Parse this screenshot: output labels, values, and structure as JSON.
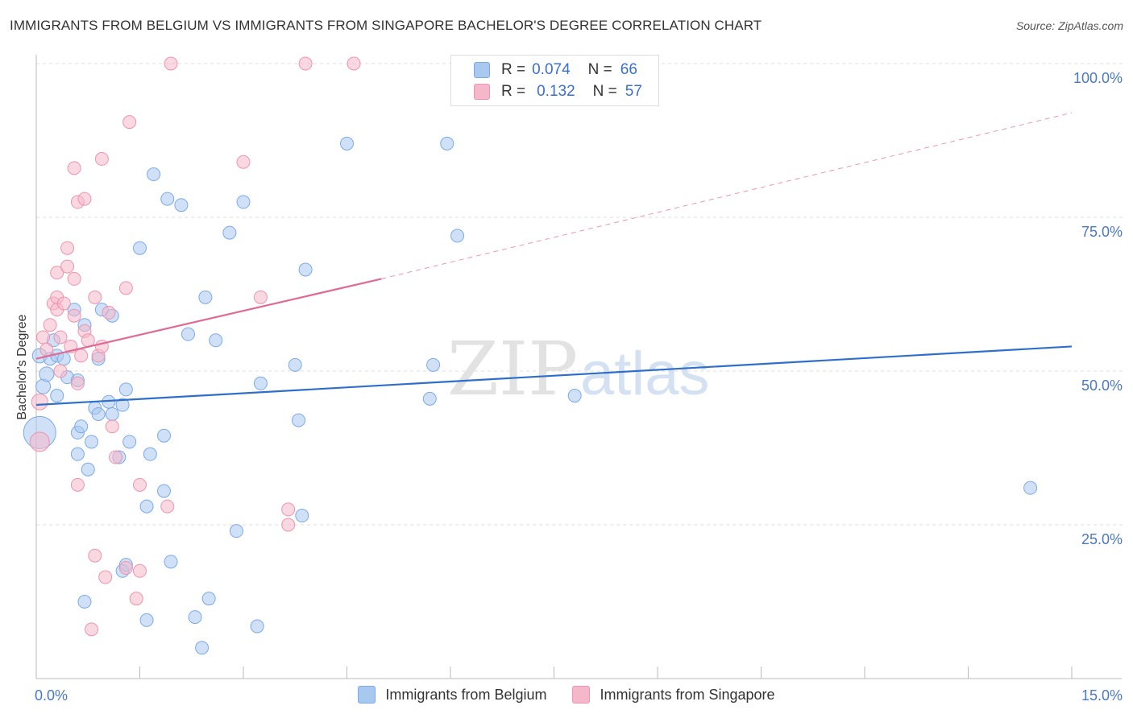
{
  "title": "IMMIGRANTS FROM BELGIUM VS IMMIGRANTS FROM SINGAPORE BACHELOR'S DEGREE CORRELATION CHART",
  "source": "Source: ZipAtlas.com",
  "watermark": {
    "zip": "ZIP",
    "atlas": "atlas"
  },
  "legend_top": {
    "rows": [
      {
        "r_label": "R = ",
        "r_value": "0.074",
        "n_label": "N = ",
        "n_value": "66",
        "color": "#a9c8f0"
      },
      {
        "r_label": "R = ",
        "r_value": "0.132",
        "n_label": "N = ",
        "n_value": "57",
        "color": "#f5b8cb"
      }
    ]
  },
  "legend_bottom": {
    "items": [
      {
        "label": "Immigrants from Belgium",
        "color": "#a9c8f0"
      },
      {
        "label": "Immigrants from Singapore",
        "color": "#f5b8cb"
      }
    ]
  },
  "chart_data": {
    "type": "scatter",
    "title": "IMMIGRANTS FROM BELGIUM VS IMMIGRANTS FROM SINGAPORE BACHELOR'S DEGREE CORRELATION CHART",
    "xlabel": "",
    "ylabel": "Bachelor's Degree",
    "xlim": [
      0,
      15
    ],
    "ylim": [
      0,
      100
    ],
    "x_tick_labels": [
      "0.0%",
      "15.0%"
    ],
    "y_ticks": [
      25,
      50,
      75,
      100
    ],
    "y_tick_labels": [
      "25.0%",
      "50.0%",
      "75.0%",
      "100.0%"
    ],
    "grid": true,
    "series": [
      {
        "name": "Immigrants from Belgium",
        "color": "#7aaae6",
        "fill": "rgba(169,200,240,0.55)",
        "trend": {
          "x": [
            0,
            15
          ],
          "y": [
            44.5,
            54
          ],
          "color": "#2f6fcc",
          "dashed_to": null
        },
        "points": [
          [
            0.05,
            40,
            20
          ],
          [
            0.05,
            52.5,
            9
          ],
          [
            0.1,
            47.5,
            9
          ],
          [
            0.15,
            49.5,
            9
          ],
          [
            0.2,
            52,
            8
          ],
          [
            0.25,
            55,
            8
          ],
          [
            0.3,
            46,
            8
          ],
          [
            0.3,
            52.5,
            8
          ],
          [
            0.4,
            52,
            8
          ],
          [
            0.45,
            49,
            8
          ],
          [
            0.55,
            60,
            8
          ],
          [
            0.6,
            40,
            8
          ],
          [
            0.6,
            36.5,
            8
          ],
          [
            0.6,
            48.5,
            8
          ],
          [
            0.65,
            41,
            8
          ],
          [
            0.7,
            57.5,
            8
          ],
          [
            0.7,
            12.5,
            8
          ],
          [
            0.75,
            34,
            8
          ],
          [
            0.8,
            38.5,
            8
          ],
          [
            0.85,
            44,
            8
          ],
          [
            0.9,
            43,
            8
          ],
          [
            0.9,
            52,
            8
          ],
          [
            0.95,
            60,
            8
          ],
          [
            1.05,
            45,
            8
          ],
          [
            1.1,
            43,
            8
          ],
          [
            1.1,
            59,
            8
          ],
          [
            1.2,
            36,
            8
          ],
          [
            1.25,
            44.5,
            8
          ],
          [
            1.25,
            17.5,
            8
          ],
          [
            1.3,
            18.5,
            8
          ],
          [
            1.3,
            47,
            8
          ],
          [
            1.35,
            38.5,
            8
          ],
          [
            1.5,
            70,
            8
          ],
          [
            1.6,
            28,
            8
          ],
          [
            1.6,
            9.5,
            8
          ],
          [
            1.65,
            36.5,
            8
          ],
          [
            1.7,
            82,
            8
          ],
          [
            1.85,
            39.5,
            8
          ],
          [
            1.85,
            30.5,
            8
          ],
          [
            1.9,
            78,
            8
          ],
          [
            1.95,
            19,
            8
          ],
          [
            2.1,
            77,
            8
          ],
          [
            2.2,
            56,
            8
          ],
          [
            2.3,
            10,
            8
          ],
          [
            2.4,
            5,
            8
          ],
          [
            2.45,
            62,
            8
          ],
          [
            2.5,
            13,
            8
          ],
          [
            2.6,
            55,
            8
          ],
          [
            2.8,
            72.5,
            8
          ],
          [
            2.9,
            24,
            8
          ],
          [
            3.0,
            77.5,
            8
          ],
          [
            3.2,
            8.5,
            8
          ],
          [
            3.25,
            48,
            8
          ],
          [
            3.75,
            51,
            8
          ],
          [
            3.8,
            42,
            8
          ],
          [
            3.85,
            26.5,
            8
          ],
          [
            3.9,
            66.5,
            8
          ],
          [
            4.5,
            87,
            8
          ],
          [
            5.7,
            45.5,
            8
          ],
          [
            5.75,
            51,
            8
          ],
          [
            5.95,
            87,
            8
          ],
          [
            6.1,
            72,
            8
          ],
          [
            7.8,
            46,
            8
          ],
          [
            14.4,
            31,
            8
          ]
        ]
      },
      {
        "name": "Immigrants from Singapore",
        "color": "#ec94b0",
        "fill": "rgba(245,184,203,0.55)",
        "trend": {
          "x": [
            0,
            5
          ],
          "y": [
            52,
            65
          ],
          "color": "#e06a93",
          "dashed_extension": {
            "x": [
              5,
              15
            ],
            "y": [
              65,
              92
            ]
          }
        },
        "points": [
          [
            0.05,
            38.5,
            12
          ],
          [
            0.05,
            45,
            10
          ],
          [
            0.1,
            55.5,
            8
          ],
          [
            0.15,
            53.5,
            8
          ],
          [
            0.2,
            57.5,
            8
          ],
          [
            0.25,
            61,
            8
          ],
          [
            0.3,
            60,
            8
          ],
          [
            0.3,
            62,
            8
          ],
          [
            0.3,
            66,
            8
          ],
          [
            0.35,
            55.5,
            8
          ],
          [
            0.35,
            50,
            8
          ],
          [
            0.4,
            61,
            8
          ],
          [
            0.45,
            70,
            8
          ],
          [
            0.45,
            67,
            8
          ],
          [
            0.5,
            54,
            8
          ],
          [
            0.55,
            59,
            8
          ],
          [
            0.55,
            65,
            8
          ],
          [
            0.55,
            83,
            8
          ],
          [
            0.6,
            77.5,
            8
          ],
          [
            0.6,
            48,
            8
          ],
          [
            0.6,
            31.5,
            8
          ],
          [
            0.65,
            52.5,
            8
          ],
          [
            0.7,
            56.5,
            8
          ],
          [
            0.7,
            78,
            8
          ],
          [
            0.75,
            55,
            8
          ],
          [
            0.8,
            8,
            8
          ],
          [
            0.85,
            62,
            8
          ],
          [
            0.85,
            20,
            8
          ],
          [
            0.9,
            52.5,
            8
          ],
          [
            0.95,
            84.5,
            8
          ],
          [
            0.95,
            54,
            8
          ],
          [
            1.0,
            16.5,
            8
          ],
          [
            1.05,
            59.5,
            8
          ],
          [
            1.1,
            41,
            8
          ],
          [
            1.15,
            36,
            8
          ],
          [
            1.3,
            18,
            8
          ],
          [
            1.3,
            63.5,
            8
          ],
          [
            1.35,
            90.5,
            8
          ],
          [
            1.45,
            13,
            8
          ],
          [
            1.5,
            31.5,
            8
          ],
          [
            1.5,
            17.5,
            8
          ],
          [
            1.9,
            28,
            8
          ],
          [
            1.95,
            100,
            8
          ],
          [
            3.0,
            84,
            8
          ],
          [
            3.25,
            62,
            8
          ],
          [
            3.65,
            25,
            8
          ],
          [
            3.65,
            27.5,
            8
          ],
          [
            3.9,
            100,
            8
          ],
          [
            4.6,
            100,
            8
          ]
        ]
      }
    ],
    "watermark": "ZIPatlas"
  }
}
